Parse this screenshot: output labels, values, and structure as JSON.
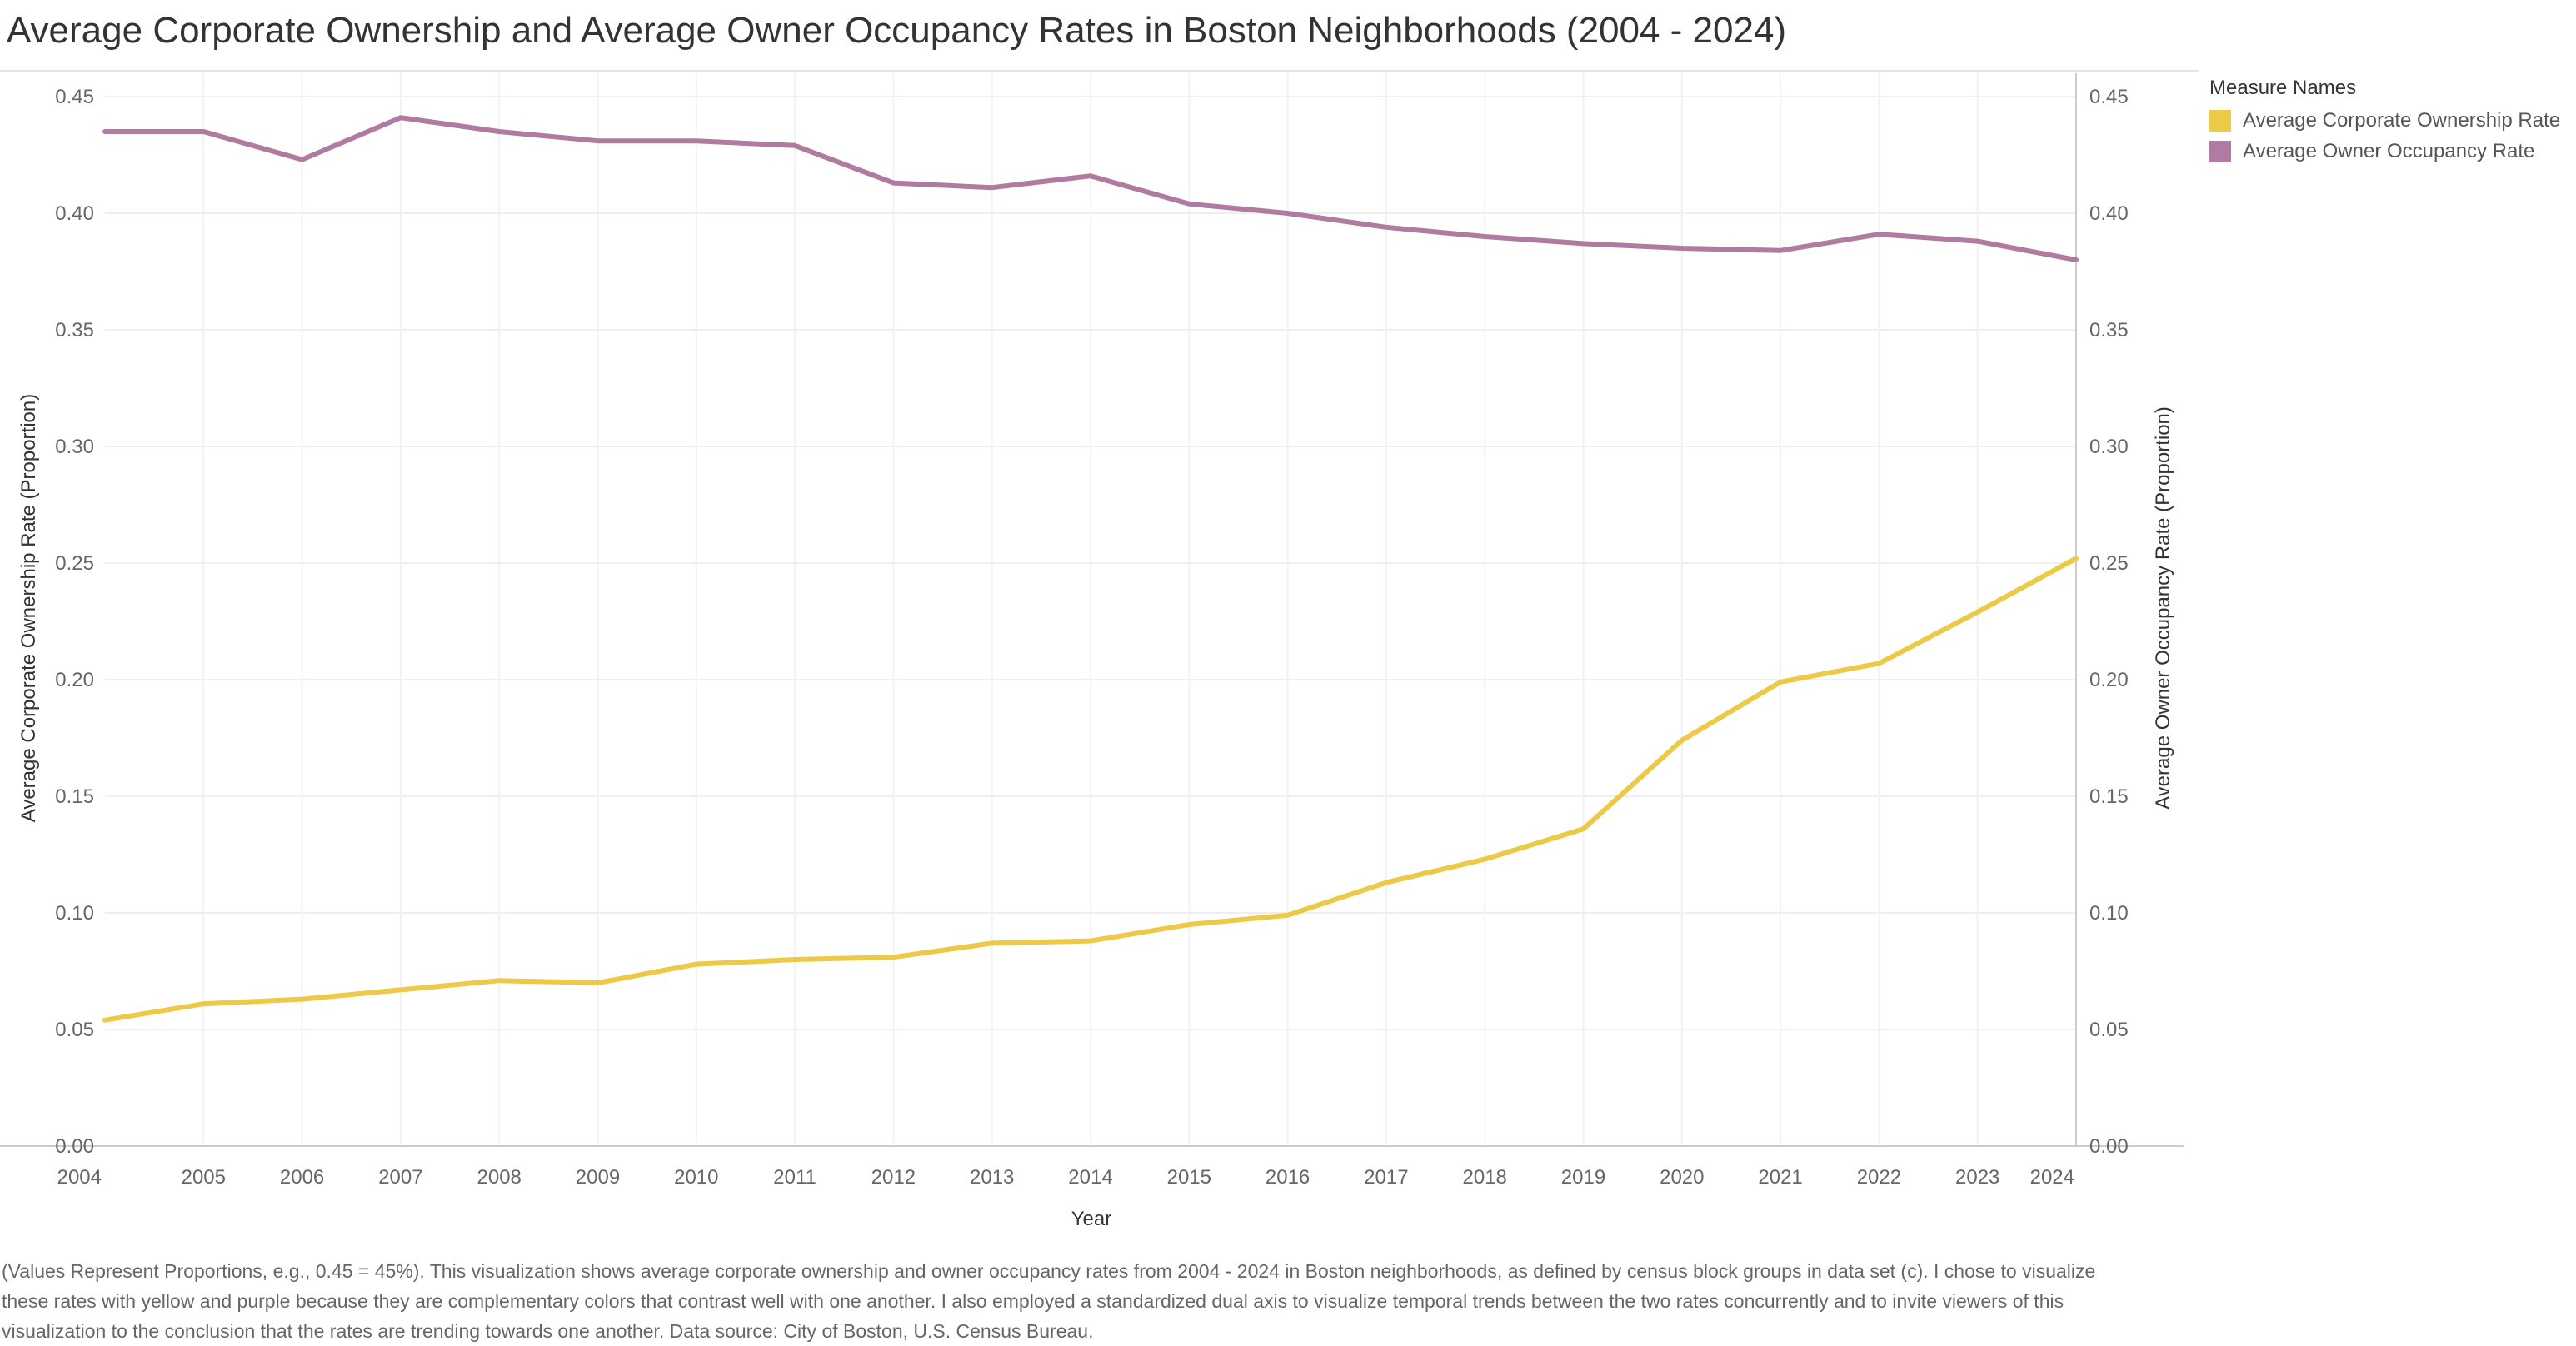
{
  "title": "Average Corporate Ownership and Average Owner Occupancy Rates in Boston Neighborhoods (2004 - 2024)",
  "legend": {
    "title": "Measure Names",
    "items": [
      {
        "label": "Average Corporate Ownership Rate",
        "color": "#EDC948"
      },
      {
        "label": "Average Owner Occupancy Rate",
        "color": "#B07AA1"
      }
    ]
  },
  "caption": "(Values Represent Proportions, e.g., 0.45 = 45%). This visualization shows average corporate ownership and owner occupancy rates from 2004 - 2024 in Boston neighborhoods, as defined by census block groups in data set (c). I chose to visualize these rates with yellow and purple because they are complementary colors that contrast well with one another. I also employed a standardized dual axis to visualize temporal trends between the two rates concurrently and to invite viewers of this visualization to the conclusion that the rates are trending towards one another. Data source: City of Boston, U.S. Census Bureau.",
  "chart_data": {
    "type": "line",
    "title": "Average Corporate Ownership and Average Owner Occupancy Rates in Boston Neighborhoods (2004 - 2024)",
    "xlabel": "Year",
    "ylabel_left": "Average Corporate Ownership Rate (Proportion)",
    "ylabel_right": "Average Owner Occupancy Rate (Proportion)",
    "x": [
      2004,
      2005,
      2006,
      2007,
      2008,
      2009,
      2010,
      2011,
      2012,
      2013,
      2014,
      2015,
      2016,
      2017,
      2018,
      2019,
      2020,
      2021,
      2022,
      2023,
      2024
    ],
    "x_tick_labels": [
      "2004",
      "2005",
      "2006",
      "2007",
      "2008",
      "2009",
      "2010",
      "2011",
      "2012",
      "2013",
      "2014",
      "2015",
      "2016",
      "2017",
      "2018",
      "2019",
      "2020",
      "2021",
      "2022",
      "2023",
      "2024"
    ],
    "ylim": [
      0,
      0.46
    ],
    "y_ticks": [
      0,
      0.05,
      0.1,
      0.15,
      0.2,
      0.25,
      0.3,
      0.35,
      0.4,
      0.45
    ],
    "y_tick_labels": [
      "0.00",
      "0.05",
      "0.10",
      "0.15",
      "0.20",
      "0.25",
      "0.30",
      "0.35",
      "0.40",
      "0.45"
    ],
    "dual_axis": true,
    "grid": true,
    "legend_position": "right",
    "series": [
      {
        "name": "Average Corporate Ownership Rate",
        "color": "#EDC948",
        "axis": "left",
        "values": [
          0.054,
          0.061,
          0.063,
          0.067,
          0.071,
          0.07,
          0.078,
          0.08,
          0.081,
          0.087,
          0.088,
          0.095,
          0.099,
          0.113,
          0.123,
          0.136,
          0.174,
          0.199,
          0.207,
          0.229,
          0.252
        ]
      },
      {
        "name": "Average Owner Occupancy Rate",
        "color": "#B07AA1",
        "axis": "right",
        "values": [
          0.435,
          0.435,
          0.423,
          0.441,
          0.435,
          0.431,
          0.431,
          0.429,
          0.413,
          0.411,
          0.416,
          0.404,
          0.4,
          0.394,
          0.39,
          0.387,
          0.385,
          0.384,
          0.391,
          0.388,
          0.38
        ]
      }
    ]
  }
}
